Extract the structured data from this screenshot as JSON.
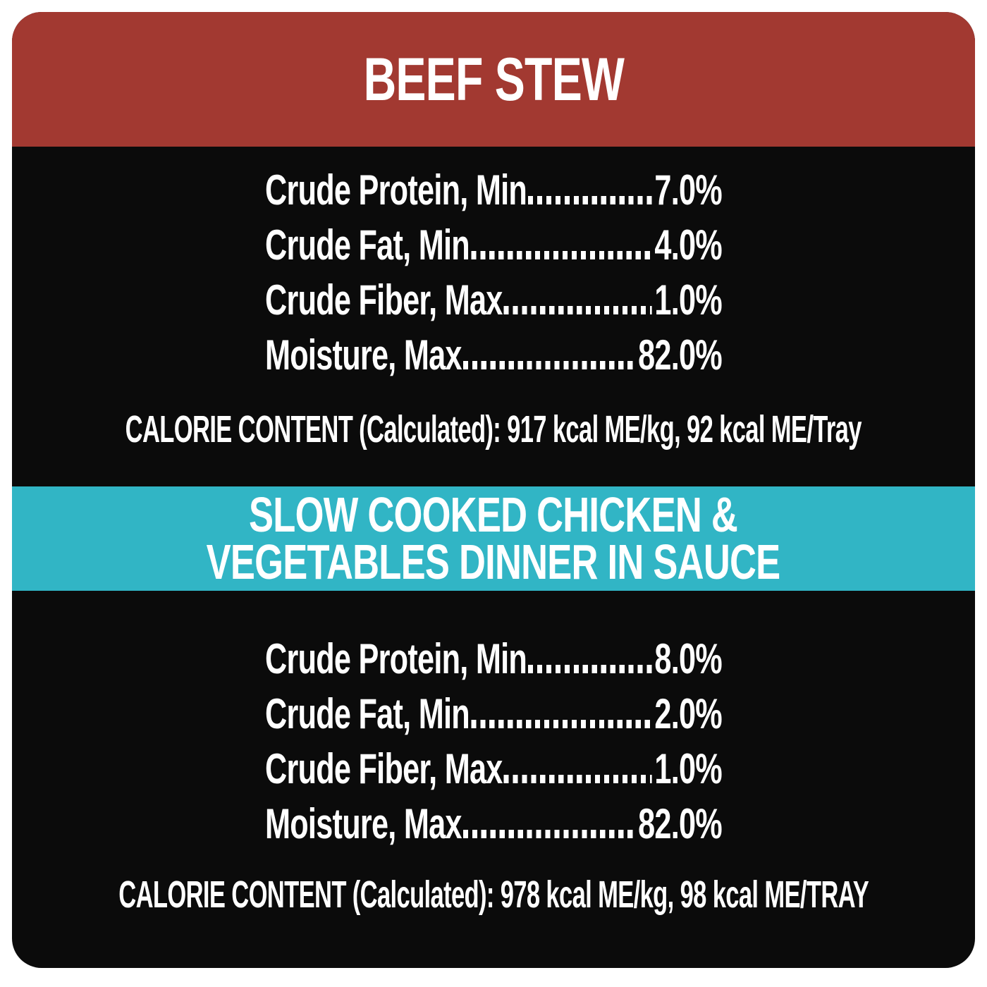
{
  "page": {
    "background_color": "#ffffff",
    "card_background_color": "#0b0b0b",
    "text_color": "#ffffff"
  },
  "sections": [
    {
      "id": "beef-stew",
      "header": {
        "title": "BEEF STEW",
        "background_color": "#a23931",
        "text_color": "#ffffff"
      },
      "rows": [
        {
          "label": "Crude Protein, Min",
          "value": "7.0%"
        },
        {
          "label": "Crude Fat, Min",
          "value": "4.0%"
        },
        {
          "label": "Crude Fiber, Max",
          "value": "1.0%"
        },
        {
          "label": "Moisture, Max",
          "value": "82.0%"
        }
      ],
      "calorie_line": "CALORIE CONTENT (Calculated): 917 kcal ME/kg, 92 kcal ME/Tray"
    },
    {
      "id": "slow-cooked-chicken-vegetables",
      "header": {
        "title_line1": "SLOW COOKED CHICKEN &",
        "title_line2": "VEGETABLES DINNER IN SAUCE",
        "background_color": "#31b5c5",
        "text_color": "#ffffff"
      },
      "rows": [
        {
          "label": "Crude Protein, Min",
          "value": "8.0%"
        },
        {
          "label": "Crude Fat, Min",
          "value": "2.0%"
        },
        {
          "label": "Crude Fiber, Max",
          "value": "1.0%"
        },
        {
          "label": "Moisture, Max",
          "value": "82.0%"
        }
      ],
      "calorie_line": "CALORIE CONTENT (Calculated): 978 kcal ME/kg, 98 kcal ME/TRAY"
    }
  ]
}
